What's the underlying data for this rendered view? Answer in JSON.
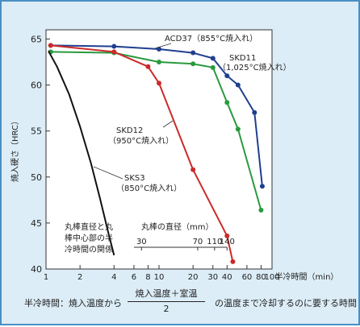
{
  "chart_data": {
    "type": "line",
    "ylabel": "焼入硬さ（HRC）",
    "xlabel": "半冷時間（min）",
    "x_scale": "log",
    "xlim": [
      1,
      100
    ],
    "ylim": [
      40,
      66
    ],
    "x_ticks": [
      1,
      2,
      4,
      6,
      8,
      10,
      20,
      30,
      40,
      60,
      80,
      100
    ],
    "x_tick_labels": [
      "1",
      "2",
      "4",
      "6",
      "8",
      "10",
      "20",
      "30",
      "40",
      "60",
      "80",
      "100"
    ],
    "y_ticks": [
      40,
      45,
      50,
      55,
      60,
      65
    ],
    "series": [
      {
        "name": "ACD37（855°C焼入れ）",
        "color": "#1f3f8f",
        "marker": true,
        "x": [
          1.1,
          4,
          10,
          20,
          30,
          40,
          50,
          70,
          82
        ],
        "y": [
          64.3,
          64.2,
          63.9,
          63.5,
          62.9,
          61.0,
          60.0,
          57.0,
          49.0
        ]
      },
      {
        "name": "SKD11（1,025°C焼入れ）",
        "color": "#2a9a3e",
        "marker": true,
        "x": [
          1.1,
          4,
          10,
          20,
          30,
          40,
          50,
          80
        ],
        "y": [
          63.6,
          63.5,
          62.5,
          62.3,
          61.9,
          58.1,
          55.2,
          46.4
        ]
      },
      {
        "name": "SKD12（950°C焼入れ）",
        "color": "#cc2a2a",
        "marker": true,
        "x": [
          1.1,
          4,
          8,
          10,
          20,
          40,
          45
        ],
        "y": [
          64.3,
          63.6,
          62.0,
          60.2,
          50.8,
          43.6,
          40.8
        ]
      },
      {
        "name": "SKS3（850°C焼入れ）",
        "color": "#111111",
        "marker": false,
        "x": [
          1.05,
          1.25,
          1.6,
          2.0,
          2.5,
          3.0,
          3.5,
          4.0
        ],
        "y": [
          63.7,
          62.0,
          59.0,
          55.5,
          51.5,
          47.7,
          44.3,
          41.5
        ]
      }
    ],
    "annotations": {
      "acd37": "ACD37（855°C焼入れ）",
      "skd11_line1": "SKD11",
      "skd11_line2": "（1,025°C焼入れ）",
      "skd12_line1": "SKD12",
      "skd12_line2": "（950°C焼入れ）",
      "sks3_line1": "SKS3",
      "sks3_line2": "（850°C焼入れ）"
    },
    "inset": {
      "title_lines": [
        "丸棒直径と丸",
        "棒中心部の半",
        "冷時間の関係"
      ],
      "diameter_label": "丸棒の直径（mm）",
      "diameter_ticks": [
        {
          "label": "30",
          "x": 7
        },
        {
          "label": "70",
          "x": 22
        },
        {
          "label": "110",
          "x": 31
        },
        {
          "label": "140",
          "x": 40
        }
      ]
    }
  },
  "footnote": {
    "lead": "半冷時間：焼入温度から",
    "numerator": "焼入温度＋室温",
    "denominator": "2",
    "tail": "の温度まで冷却するのに要する時間"
  }
}
